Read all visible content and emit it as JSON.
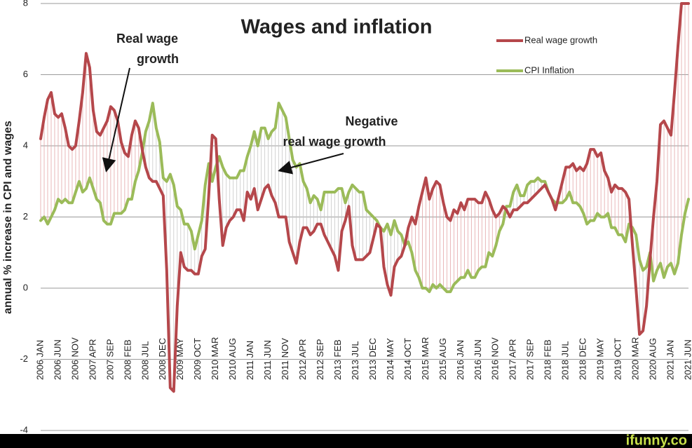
{
  "chart_data": {
    "type": "line",
    "title": "Wages and inflation",
    "y_label": "annual % increase in CPI and wages",
    "annotations": [
      {
        "text": [
          "Real wage",
          "growth"
        ]
      },
      {
        "text": [
          "Negative",
          "real wage growth"
        ]
      }
    ],
    "watermark": "ifunny.co",
    "categories": [
      "2006 JAN",
      null,
      null,
      null,
      null,
      "2006 JUN",
      null,
      null,
      null,
      null,
      "2006 NOV",
      null,
      null,
      null,
      null,
      "2007 APR",
      null,
      null,
      null,
      null,
      "2007 SEP",
      null,
      null,
      null,
      null,
      "2008 FEB",
      null,
      null,
      null,
      null,
      "2008 JUL",
      null,
      null,
      null,
      null,
      "2008 DEC",
      null,
      null,
      null,
      null,
      "2009 MAY",
      null,
      null,
      null,
      null,
      "2009 OCT",
      null,
      null,
      null,
      null,
      "2010 MAR",
      null,
      null,
      null,
      null,
      "2010 AUG",
      null,
      null,
      null,
      null,
      "2011 JAN",
      null,
      null,
      null,
      null,
      "2011 JUN",
      null,
      null,
      null,
      null,
      "2011 NOV",
      null,
      null,
      null,
      null,
      "2012 APR",
      null,
      null,
      null,
      null,
      "2012 SEP",
      null,
      null,
      null,
      null,
      "2013 FEB",
      null,
      null,
      null,
      null,
      "2013 JUL",
      null,
      null,
      null,
      null,
      "2013 DEC",
      null,
      null,
      null,
      null,
      "2014 MAY",
      null,
      null,
      null,
      null,
      "2014 OCT",
      null,
      null,
      null,
      null,
      "2015 MAR",
      null,
      null,
      null,
      null,
      "2015 AUG",
      null,
      null,
      null,
      null,
      "2016 JAN",
      null,
      null,
      null,
      null,
      "2016 JUN",
      null,
      null,
      null,
      null,
      "2016 NOV",
      null,
      null,
      null,
      null,
      "2017 APR",
      null,
      null,
      null,
      null,
      "2017 SEP",
      null,
      null,
      null,
      null,
      "2018 FEB",
      null,
      null,
      null,
      null,
      "2018 JUL",
      null,
      null,
      null,
      null,
      "2018 DEC",
      null,
      null,
      null,
      null,
      "2019 MAY",
      null,
      null,
      null,
      null,
      "2019 OCT",
      null,
      null,
      null,
      null,
      "2020 MAR",
      null,
      null,
      null,
      null,
      "2020 AUG",
      null,
      null,
      null,
      null,
      "2021 JAN",
      null,
      null,
      null,
      null,
      "2021 JUN"
    ],
    "series": [
      {
        "name": "Real wage growth",
        "color": "#b5474b",
        "values": [
          4.2,
          4.8,
          5.3,
          5.5,
          4.9,
          4.8,
          4.9,
          4.5,
          4.0,
          3.9,
          4.0,
          4.7,
          5.5,
          6.6,
          6.2,
          5.0,
          4.4,
          4.3,
          4.5,
          4.7,
          5.1,
          5.0,
          4.7,
          4.1,
          3.8,
          3.7,
          4.3,
          4.7,
          4.5,
          3.9,
          3.4,
          3.1,
          3.0,
          3.0,
          2.8,
          2.6,
          0.5,
          -2.8,
          -2.9,
          -0.5,
          1.0,
          0.6,
          0.5,
          0.5,
          0.4,
          0.4,
          0.9,
          1.1,
          2.6,
          4.3,
          4.2,
          2.5,
          1.2,
          1.7,
          1.9,
          2.0,
          2.2,
          2.2,
          1.9,
          2.7,
          2.5,
          2.8,
          2.2,
          2.5,
          2.8,
          2.9,
          2.6,
          2.4,
          2.0,
          2.0,
          2.0,
          1.3,
          1.0,
          0.7,
          1.3,
          1.7,
          1.7,
          1.5,
          1.6,
          1.8,
          1.8,
          1.5,
          1.3,
          1.1,
          0.9,
          0.5,
          1.6,
          1.9,
          2.3,
          1.2,
          0.8,
          0.8,
          0.8,
          0.9,
          1.0,
          1.4,
          1.8,
          1.7,
          0.6,
          0.1,
          -0.2,
          0.6,
          0.8,
          0.9,
          1.2,
          1.7,
          2.0,
          1.8,
          2.3,
          2.7,
          3.1,
          2.5,
          2.8,
          3.0,
          2.9,
          2.4,
          2.0,
          1.9,
          2.2,
          2.1,
          2.4,
          2.2,
          2.5,
          2.5,
          2.5,
          2.4,
          2.4,
          2.7,
          2.5,
          2.2,
          2.0,
          2.1,
          2.3,
          2.2,
          2.0,
          2.2,
          2.2,
          2.3,
          2.4,
          2.4,
          2.5,
          2.6,
          2.7,
          2.8,
          2.9,
          2.7,
          2.5,
          2.2,
          2.6,
          3.0,
          3.4,
          3.4,
          3.5,
          3.3,
          3.4,
          3.3,
          3.5,
          3.9,
          3.9,
          3.7,
          3.8,
          3.3,
          3.1,
          2.7,
          2.9,
          2.8,
          2.8,
          2.7,
          2.5,
          1.2,
          0.0,
          -1.3,
          -1.2,
          -0.5,
          0.8,
          2.0,
          3.0,
          4.6,
          4.7,
          4.5,
          4.3,
          5.5,
          6.8,
          8.0,
          8.0,
          8.0
        ]
      },
      {
        "name": "CPI Inflation",
        "color": "#9bbb59",
        "values": [
          1.9,
          2.0,
          1.8,
          2.0,
          2.2,
          2.5,
          2.4,
          2.5,
          2.4,
          2.4,
          2.7,
          3.0,
          2.7,
          2.8,
          3.1,
          2.8,
          2.5,
          2.4,
          1.9,
          1.8,
          1.8,
          2.1,
          2.1,
          2.1,
          2.2,
          2.5,
          2.5,
          3.0,
          3.3,
          3.8,
          4.4,
          4.7,
          5.2,
          4.5,
          4.1,
          3.1,
          3.0,
          3.2,
          2.9,
          2.3,
          2.2,
          1.8,
          1.8,
          1.6,
          1.1,
          1.5,
          1.9,
          2.9,
          3.5,
          3.0,
          3.4,
          3.7,
          3.4,
          3.2,
          3.1,
          3.1,
          3.1,
          3.3,
          3.3,
          3.7,
          4.0,
          4.4,
          4.0,
          4.5,
          4.5,
          4.2,
          4.4,
          4.5,
          5.2,
          5.0,
          4.8,
          4.2,
          3.6,
          3.4,
          3.5,
          3.0,
          2.8,
          2.4,
          2.6,
          2.5,
          2.2,
          2.7,
          2.7,
          2.7,
          2.7,
          2.8,
          2.8,
          2.4,
          2.7,
          2.9,
          2.8,
          2.7,
          2.7,
          2.2,
          2.1,
          2.0,
          1.9,
          1.7,
          1.6,
          1.8,
          1.5,
          1.9,
          1.6,
          1.5,
          1.2,
          1.3,
          1.0,
          0.5,
          0.3,
          0.0,
          0.0,
          -0.1,
          0.1,
          0.0,
          0.1,
          0.0,
          -0.1,
          -0.1,
          0.1,
          0.2,
          0.3,
          0.3,
          0.5,
          0.3,
          0.3,
          0.5,
          0.6,
          0.6,
          1.0,
          0.9,
          1.2,
          1.6,
          1.8,
          2.3,
          2.3,
          2.7,
          2.9,
          2.6,
          2.6,
          2.9,
          3.0,
          3.0,
          3.1,
          3.0,
          3.0,
          2.7,
          2.5,
          2.4,
          2.4,
          2.4,
          2.5,
          2.7,
          2.4,
          2.4,
          2.3,
          2.1,
          1.8,
          1.9,
          1.9,
          2.1,
          2.0,
          2.0,
          2.1,
          1.7,
          1.7,
          1.5,
          1.5,
          1.3,
          1.8,
          1.7,
          1.5,
          0.8,
          0.5,
          0.6,
          1.0,
          0.2,
          0.5,
          0.7,
          0.3,
          0.6,
          0.7,
          0.4,
          0.7,
          1.5,
          2.1,
          2.5
        ]
      }
    ],
    "ylim": [
      -4,
      8
    ],
    "yticks": [
      -4,
      -2,
      0,
      2,
      4,
      6,
      8
    ],
    "grid": true
  }
}
